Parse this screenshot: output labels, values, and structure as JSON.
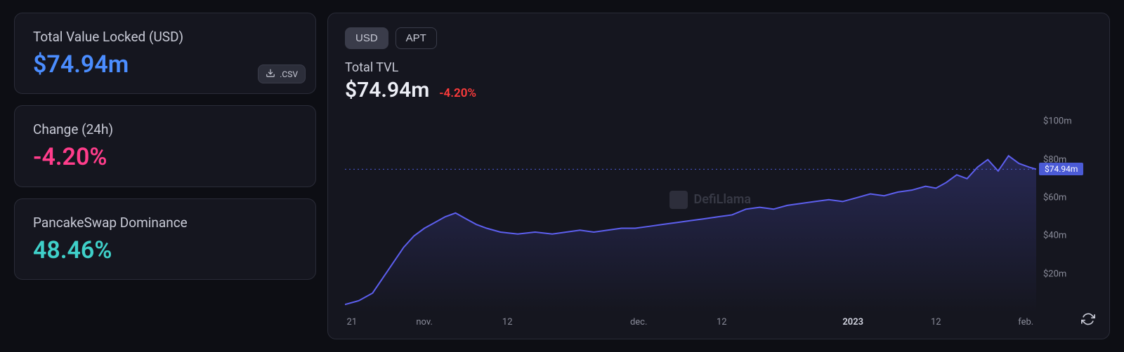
{
  "colors": {
    "background": "#0d0e14",
    "card_bg": "#15161f",
    "card_border": "#2a2c38",
    "text_muted": "#8a8c9a",
    "text_normal": "#c8cad6",
    "text_bright": "#eceef5",
    "accent_blue": "#4b8dff",
    "accent_pink": "#ff3d8b",
    "accent_teal": "#3fd0c9",
    "delta_red": "#ff3b3b",
    "line_purple": "#5d5fef",
    "area_fill": "rgba(93,95,239,0.12)",
    "tag_bg": "#4b5bd6",
    "guide_line": "#4b5bd6"
  },
  "left": {
    "tvl": {
      "label": "Total Value Locked (USD)",
      "value": "$74.94m"
    },
    "change": {
      "label": "Change (24h)",
      "value": "-4.20%"
    },
    "dominance": {
      "label": "PancakeSwap Dominance",
      "value": "48.46%"
    },
    "csv_button": ".CSV"
  },
  "chart_header": {
    "tabs": [
      "USD",
      "APT"
    ],
    "active_tab": 0,
    "title": "Total TVL",
    "value": "$74.94m",
    "delta": "-4.20%"
  },
  "watermark": "DefiLlama",
  "chart": {
    "type": "area",
    "y_axis": {
      "min": 0,
      "max": 110,
      "ticks": [
        {
          "v": 100,
          "label": "$100m"
        },
        {
          "v": 80,
          "label": "$80m"
        },
        {
          "v": 60,
          "label": "$60m"
        },
        {
          "v": 40,
          "label": "$40m"
        },
        {
          "v": 20,
          "label": "$20m"
        }
      ],
      "current_tag": {
        "v": 74.94,
        "label": "$74.94m"
      }
    },
    "x_axis": {
      "labels": [
        {
          "pos": 0.01,
          "text": "21",
          "bold": false
        },
        {
          "pos": 0.115,
          "text": "nov.",
          "bold": false
        },
        {
          "pos": 0.235,
          "text": "12",
          "bold": false
        },
        {
          "pos": 0.425,
          "text": "dec.",
          "bold": false
        },
        {
          "pos": 0.545,
          "text": "12",
          "bold": false
        },
        {
          "pos": 0.735,
          "text": "2023",
          "bold": true
        },
        {
          "pos": 0.855,
          "text": "12",
          "bold": false
        },
        {
          "pos": 0.985,
          "text": "feb.",
          "bold": false
        }
      ]
    },
    "line_width": 2,
    "series": [
      {
        "x": 0.0,
        "y": 4
      },
      {
        "x": 0.02,
        "y": 6
      },
      {
        "x": 0.04,
        "y": 10
      },
      {
        "x": 0.055,
        "y": 18
      },
      {
        "x": 0.07,
        "y": 26
      },
      {
        "x": 0.085,
        "y": 34
      },
      {
        "x": 0.1,
        "y": 40
      },
      {
        "x": 0.115,
        "y": 44
      },
      {
        "x": 0.13,
        "y": 47
      },
      {
        "x": 0.145,
        "y": 50
      },
      {
        "x": 0.16,
        "y": 52
      },
      {
        "x": 0.175,
        "y": 49
      },
      {
        "x": 0.19,
        "y": 46
      },
      {
        "x": 0.205,
        "y": 44
      },
      {
        "x": 0.225,
        "y": 42
      },
      {
        "x": 0.25,
        "y": 41
      },
      {
        "x": 0.275,
        "y": 42
      },
      {
        "x": 0.3,
        "y": 41
      },
      {
        "x": 0.32,
        "y": 42
      },
      {
        "x": 0.34,
        "y": 43
      },
      {
        "x": 0.36,
        "y": 42
      },
      {
        "x": 0.38,
        "y": 43
      },
      {
        "x": 0.4,
        "y": 44
      },
      {
        "x": 0.42,
        "y": 44
      },
      {
        "x": 0.44,
        "y": 45
      },
      {
        "x": 0.46,
        "y": 46
      },
      {
        "x": 0.48,
        "y": 47
      },
      {
        "x": 0.5,
        "y": 48
      },
      {
        "x": 0.52,
        "y": 49
      },
      {
        "x": 0.54,
        "y": 50
      },
      {
        "x": 0.56,
        "y": 51
      },
      {
        "x": 0.58,
        "y": 54
      },
      {
        "x": 0.6,
        "y": 55
      },
      {
        "x": 0.62,
        "y": 54
      },
      {
        "x": 0.64,
        "y": 56
      },
      {
        "x": 0.66,
        "y": 57
      },
      {
        "x": 0.68,
        "y": 58
      },
      {
        "x": 0.7,
        "y": 59
      },
      {
        "x": 0.72,
        "y": 58
      },
      {
        "x": 0.74,
        "y": 60
      },
      {
        "x": 0.76,
        "y": 62
      },
      {
        "x": 0.78,
        "y": 61
      },
      {
        "x": 0.8,
        "y": 63
      },
      {
        "x": 0.82,
        "y": 64
      },
      {
        "x": 0.84,
        "y": 66
      },
      {
        "x": 0.855,
        "y": 65
      },
      {
        "x": 0.87,
        "y": 68
      },
      {
        "x": 0.885,
        "y": 72
      },
      {
        "x": 0.9,
        "y": 70
      },
      {
        "x": 0.915,
        "y": 76
      },
      {
        "x": 0.93,
        "y": 80
      },
      {
        "x": 0.945,
        "y": 74
      },
      {
        "x": 0.96,
        "y": 82
      },
      {
        "x": 0.975,
        "y": 78
      },
      {
        "x": 0.99,
        "y": 76
      },
      {
        "x": 1.0,
        "y": 74.94
      }
    ]
  }
}
